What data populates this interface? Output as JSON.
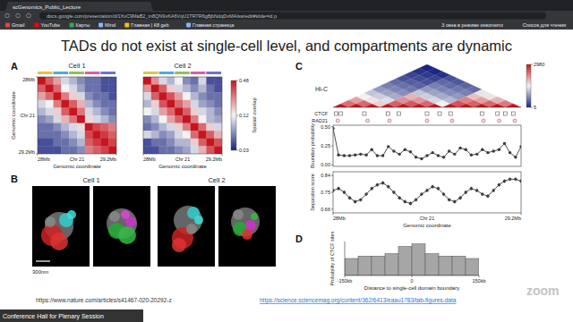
{
  "browser": {
    "tab": "scGenomics_Public_Lecture",
    "url": "docs.google.com/presentation/d/1XvC9MaB2_tn8QN9vKA6VqU1TR7R6g8jbNdqDxMAlsw/edit#slide=id.p",
    "bookmarks": [
      "Gmail",
      "YouTube",
      "Карты",
      "Mind",
      "Главная | К8 geb",
      "Главная страница"
    ],
    "right_items": [
      "3 окна в режиме инкогнито",
      "Список для чтения"
    ]
  },
  "slide": {
    "title": "TADs do not exist at single-cell level, and compartments are dynamic",
    "panel_labels": [
      "A",
      "B",
      "C",
      "D"
    ],
    "links": [
      "https://www.nature.com/articles/s41467-020-20292-z",
      "https://science.sciencemag.org/content/362/6413/eaau1783/tab-figures-data"
    ]
  },
  "panel_b": {
    "labels": [
      "Cell 1",
      "Cell 2"
    ],
    "scale_bar": "300nm"
  },
  "zoom": {
    "logo": "zoom",
    "meeting": "Conference Hall for Plenary Session"
  },
  "chart_data": [
    {
      "type": "heatmap",
      "title": "Cell 1",
      "cells": [
        [
          0.48,
          0.3,
          0.2,
          0.1,
          0.08,
          0.06,
          0.05,
          0.05,
          0.04,
          0.04
        ],
        [
          0.3,
          0.48,
          0.28,
          0.12,
          0.1,
          0.07,
          0.05,
          0.05,
          0.04,
          0.04
        ],
        [
          0.2,
          0.28,
          0.48,
          0.25,
          0.15,
          0.1,
          0.06,
          0.05,
          0.05,
          0.04
        ],
        [
          0.1,
          0.12,
          0.25,
          0.48,
          0.3,
          0.18,
          0.08,
          0.06,
          0.05,
          0.05
        ],
        [
          0.08,
          0.1,
          0.15,
          0.3,
          0.48,
          0.26,
          0.1,
          0.08,
          0.06,
          0.05
        ],
        [
          0.06,
          0.07,
          0.1,
          0.18,
          0.26,
          0.48,
          0.14,
          0.1,
          0.08,
          0.06
        ],
        [
          0.05,
          0.05,
          0.06,
          0.08,
          0.1,
          0.14,
          0.48,
          0.35,
          0.3,
          0.25
        ],
        [
          0.05,
          0.05,
          0.05,
          0.06,
          0.08,
          0.1,
          0.35,
          0.48,
          0.38,
          0.3
        ],
        [
          0.04,
          0.04,
          0.05,
          0.05,
          0.06,
          0.08,
          0.3,
          0.38,
          0.48,
          0.36
        ],
        [
          0.04,
          0.04,
          0.04,
          0.05,
          0.05,
          0.06,
          0.25,
          0.3,
          0.36,
          0.48
        ]
      ],
      "color_range": [
        0.03,
        0.48
      ],
      "log": true,
      "xlim": [
        28,
        29.2
      ],
      "xticks": [
        {
          "value": 28,
          "label": "28Mb"
        },
        {
          "value": 29.2,
          "label": "29.2Mb"
        }
      ],
      "ylim": [
        28,
        29.2
      ],
      "yticks": [
        {
          "value": 28,
          "label": "28Mb"
        },
        {
          "value": 29.2,
          "label": "29.2Mb"
        }
      ],
      "annotations": [
        "Chr 21",
        "Chr 21"
      ],
      "x_label": "Genomic coordinate",
      "y_label": "Genomic coordinate"
    },
    {
      "type": "heatmap",
      "title": "Cell 2",
      "cells": [
        [
          0.48,
          0.22,
          0.1,
          0.08,
          0.12,
          0.06,
          0.05,
          0.1,
          0.04,
          0.04
        ],
        [
          0.22,
          0.48,
          0.3,
          0.15,
          0.1,
          0.08,
          0.06,
          0.08,
          0.05,
          0.04
        ],
        [
          0.1,
          0.3,
          0.48,
          0.32,
          0.2,
          0.12,
          0.08,
          0.06,
          0.05,
          0.05
        ],
        [
          0.08,
          0.15,
          0.32,
          0.48,
          0.28,
          0.2,
          0.1,
          0.07,
          0.06,
          0.05
        ],
        [
          0.12,
          0.1,
          0.2,
          0.28,
          0.48,
          0.3,
          0.15,
          0.1,
          0.08,
          0.06
        ],
        [
          0.06,
          0.08,
          0.12,
          0.2,
          0.3,
          0.48,
          0.25,
          0.12,
          0.08,
          0.07
        ],
        [
          0.05,
          0.06,
          0.08,
          0.1,
          0.15,
          0.25,
          0.48,
          0.28,
          0.15,
          0.1
        ],
        [
          0.1,
          0.08,
          0.06,
          0.07,
          0.1,
          0.12,
          0.28,
          0.48,
          0.3,
          0.18
        ],
        [
          0.04,
          0.05,
          0.05,
          0.06,
          0.08,
          0.08,
          0.15,
          0.3,
          0.48,
          0.32
        ],
        [
          0.04,
          0.04,
          0.05,
          0.05,
          0.06,
          0.07,
          0.1,
          0.18,
          0.32,
          0.48
        ]
      ],
      "color_range": [
        0.03,
        0.48
      ],
      "log": true,
      "color_ticks": [
        0.48,
        0.12,
        0.03
      ],
      "colorbar_label": "Spatial overlap",
      "xlim": [
        28,
        29.2
      ],
      "xticks": [
        {
          "value": 28,
          "label": "28Mb"
        },
        {
          "value": 29.2,
          "label": "29.2Mb"
        }
      ],
      "annotations": [
        "Chr 21"
      ],
      "x_label": "Genomic coordinate"
    },
    {
      "type": "heatmap",
      "title": "Hi-C",
      "cells": [
        [
          2980,
          800,
          400,
          120,
          60,
          30,
          20,
          15,
          10,
          8,
          6,
          5
        ],
        [
          2980,
          900,
          150,
          70,
          35,
          22,
          16,
          12,
          9,
          7,
          5
        ],
        [
          2980,
          200,
          90,
          40,
          25,
          18,
          13,
          10,
          8,
          6
        ],
        [
          2980,
          1000,
          500,
          300,
          60,
          30,
          20,
          14,
          10
        ],
        [
          2980,
          1100,
          450,
          70,
          35,
          22,
          15,
          11
        ],
        [
          2980,
          900,
          80,
          40,
          25,
          18,
          13
        ],
        [
          2980,
          120,
          50,
          30,
          20,
          15
        ],
        [
          2980,
          1200,
          600,
          250,
          100
        ],
        [
          2980,
          1000,
          400,
          150
        ],
        [
          2980,
          900,
          300
        ],
        [
          2980,
          700
        ],
        [
          2980
        ]
      ],
      "color_range": [
        5,
        2980
      ],
      "color_ticks": [
        2980,
        5
      ],
      "log": true,
      "xlim": [
        28,
        29.2
      ],
      "tracks": [
        {
          "name": "CTCF",
          "positions": [
            28.02,
            28.05,
            28.2,
            28.35,
            28.42,
            28.6,
            28.68,
            28.75,
            28.95,
            29.05,
            29.1,
            29.15
          ]
        },
        {
          "name": "RAD21",
          "positions": [
            28.03,
            28.22,
            28.36,
            28.6,
            28.76,
            28.96,
            29.06,
            29.16
          ]
        }
      ]
    },
    {
      "type": "line",
      "x": [
        28.0,
        28.035,
        28.071,
        28.106,
        28.141,
        28.176,
        28.212,
        28.247,
        28.282,
        28.318,
        28.353,
        28.388,
        28.424,
        28.459,
        28.494,
        28.529,
        28.565,
        28.6,
        28.635,
        28.671,
        28.706,
        28.741,
        28.776,
        28.812,
        28.847,
        28.882,
        28.918,
        28.953,
        28.988,
        29.024,
        29.059,
        29.094,
        29.129,
        29.165,
        29.2
      ],
      "values": [
        0.48,
        0.13,
        0.12,
        0.12,
        0.13,
        0.14,
        0.13,
        0.2,
        0.12,
        0.12,
        0.24,
        0.18,
        0.14,
        0.2,
        0.17,
        0.1,
        0.08,
        0.12,
        0.16,
        0.12,
        0.1,
        0.18,
        0.14,
        0.22,
        0.2,
        0.13,
        0.14,
        0.2,
        0.16,
        0.18,
        0.2,
        0.28,
        0.16,
        0.1,
        0.24
      ],
      "xlim": [
        28,
        29.2
      ],
      "ylim": [
        -0.02,
        0.52
      ],
      "yticks": [
        {
          "value": 0,
          "label": "0.00"
        },
        {
          "value": 0.25,
          "label": "0.25"
        },
        {
          "value": 0.5,
          "label": "0.50"
        }
      ],
      "y_label": "Boundary probability",
      "marker": "circle",
      "color": "#3a3a3a",
      "tick_labels": "y"
    },
    {
      "type": "line",
      "x": [
        28.0,
        28.035,
        28.071,
        28.106,
        28.141,
        28.176,
        28.212,
        28.247,
        28.282,
        28.318,
        28.353,
        28.388,
        28.424,
        28.459,
        28.494,
        28.529,
        28.565,
        28.6,
        28.635,
        28.671,
        28.706,
        28.741,
        28.776,
        28.812,
        28.847,
        28.882,
        28.918,
        28.953,
        28.988,
        29.024,
        29.059,
        29.094,
        29.129,
        29.165,
        29.2
      ],
      "values": [
        0.76,
        0.77,
        0.75,
        0.72,
        0.7,
        0.71,
        0.74,
        0.77,
        0.79,
        0.8,
        0.78,
        0.75,
        0.72,
        0.7,
        0.69,
        0.71,
        0.74,
        0.76,
        0.78,
        0.77,
        0.74,
        0.71,
        0.7,
        0.72,
        0.75,
        0.77,
        0.76,
        0.74,
        0.73,
        0.76,
        0.79,
        0.81,
        0.82,
        0.82,
        0.81
      ],
      "errors": [
        0.01,
        0.01,
        0.01,
        0.01,
        0.01,
        0.01,
        0.01,
        0.01,
        0.01,
        0.01,
        0.01,
        0.01,
        0.01,
        0.01,
        0.01,
        0.01,
        0.01,
        0.01,
        0.01,
        0.01,
        0.01,
        0.01,
        0.01,
        0.01,
        0.01,
        0.01,
        0.01,
        0.01,
        0.01,
        0.01,
        0.01,
        0.01,
        0.01,
        0.01,
        0.01
      ],
      "xlim": [
        28,
        29.2
      ],
      "ylim": [
        0.64,
        0.86
      ],
      "xticks": [
        {
          "value": 28,
          "label": "28Mb"
        },
        {
          "value": 29.2,
          "label": "29.2Mb"
        }
      ],
      "yticks": [
        0.66,
        0.75,
        0.84
      ],
      "annotations": [
        "Chr 21"
      ],
      "x_label": "Genomic coordinate",
      "y_label": "Separation score",
      "marker": "circle",
      "color": "#3a3a3a"
    },
    {
      "type": "histogram",
      "bins": [
        -150,
        -120,
        -90,
        -60,
        -30,
        0,
        30,
        60,
        90,
        120,
        150
      ],
      "values": [
        0.07,
        0.08,
        0.08,
        0.09,
        0.12,
        0.13,
        0.09,
        0.08,
        0.08,
        0.07
      ],
      "xlim": [
        -150,
        150
      ],
      "ylim": [
        0,
        0.14
      ],
      "xticks": [
        {
          "value": -150,
          "label": "-150kb"
        },
        0,
        {
          "value": 150,
          "label": "150kb"
        }
      ],
      "tick_labels": "x",
      "x_label": "Distance to single-cell domain boundary",
      "y_label": "Probability of CTCF sites",
      "color": "#a6a6a6"
    }
  ]
}
